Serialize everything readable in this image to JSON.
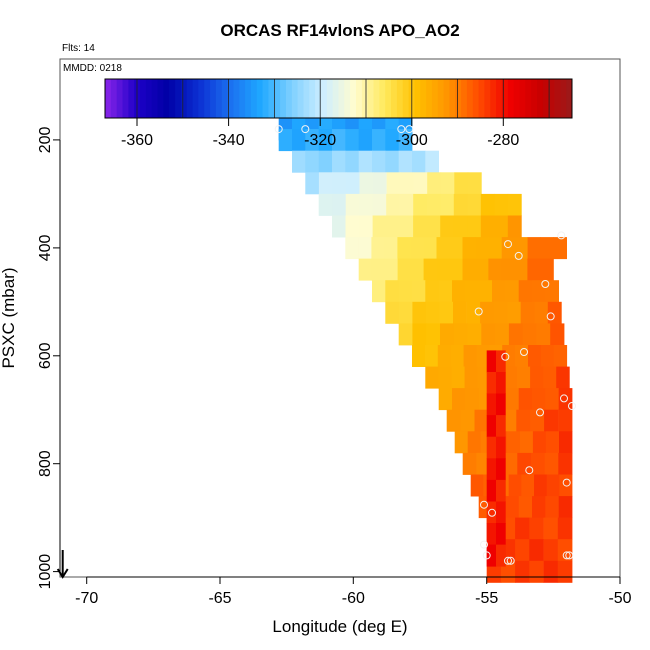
{
  "chart_data": {
    "type": "heatmap",
    "title": "ORCAS RF14vlonS APO_AO2",
    "flights_note": "Flts: 14",
    "date_note": "MMDD: 0218",
    "xlabel": "Longitude (deg E)",
    "ylabel": "PSXC (mbar)",
    "xlim": [
      -71,
      -50
    ],
    "ylim": [
      1010,
      50
    ],
    "x_ticks": [
      -70,
      -65,
      -60,
      -55,
      -50
    ],
    "x_tick_labels": [
      "-70",
      "-65",
      "-60",
      "-55",
      "-50"
    ],
    "y_ticks": [
      200,
      400,
      600,
      800,
      1000
    ],
    "y_tick_labels": [
      "200",
      "400",
      "600",
      "800",
      "1000"
    ],
    "colorbar": {
      "range": [
        -367,
        -265
      ],
      "ticks": [
        -360,
        -340,
        -320,
        -300,
        -280
      ],
      "tick_labels": [
        "-360",
        "-340",
        "-320",
        "-300",
        "-280"
      ],
      "colors": [
        "#8b25ea",
        "#1f00c8",
        "#0000a6",
        "#0b2ed1",
        "#1b6ff0",
        "#1fa8ff",
        "#7fd0ff",
        "#cdeeff",
        "#fffcd0",
        "#ffe95a",
        "#ffc000",
        "#ff9400",
        "#ff4c00",
        "#f00000",
        "#c80000",
        "#9a1a1a"
      ]
    },
    "grid": false,
    "layers": [
      {
        "p": 180,
        "lon_min": -62.8,
        "lon_max": -57.8,
        "v_left": -334,
        "v_right": -334
      },
      {
        "p": 200,
        "lon_min": -62.8,
        "lon_max": -57.8,
        "v_left": -332,
        "v_right": -332
      },
      {
        "p": 240,
        "lon_min": -62.3,
        "lon_max": -56.8,
        "v_left": -325,
        "v_right": -322
      },
      {
        "p": 280,
        "lon_min": -61.8,
        "lon_max": -55.2,
        "v_left": -322,
        "v_right": -304
      },
      {
        "p": 320,
        "lon_min": -61.3,
        "lon_max": -53.7,
        "v_left": -318,
        "v_right": -298
      },
      {
        "p": 360,
        "lon_min": -60.8,
        "lon_max": -53.7,
        "v_left": -315,
        "v_right": -294
      },
      {
        "p": 400,
        "lon_min": -60.3,
        "lon_max": -52.0,
        "v_left": -313,
        "v_right": -287
      },
      {
        "p": 440,
        "lon_min": -59.8,
        "lon_max": -52.5,
        "v_left": -310,
        "v_right": -287
      },
      {
        "p": 480,
        "lon_min": -59.3,
        "lon_max": -52.3,
        "v_left": -307,
        "v_right": -288
      },
      {
        "p": 520,
        "lon_min": -58.8,
        "lon_max": -52.2,
        "v_left": -304,
        "v_right": -288
      },
      {
        "p": 560,
        "lon_min": -58.3,
        "lon_max": -52.1,
        "v_left": -301,
        "v_right": -287
      },
      {
        "p": 600,
        "lon_min": -57.8,
        "lon_max": -52.0,
        "v_left": -299,
        "v_right": -286
      },
      {
        "p": 640,
        "lon_min": -57.3,
        "lon_max": -51.9,
        "v_left": -297,
        "v_right": -285
      },
      {
        "p": 680,
        "lon_min": -56.8,
        "lon_max": -51.8,
        "v_left": -295,
        "v_right": -284
      },
      {
        "p": 720,
        "lon_min": -56.5,
        "lon_max": -51.8,
        "v_left": -293,
        "v_right": -284
      },
      {
        "p": 760,
        "lon_min": -56.2,
        "lon_max": -51.8,
        "v_left": -291,
        "v_right": -284
      },
      {
        "p": 800,
        "lon_min": -55.9,
        "lon_max": -51.8,
        "v_left": -290,
        "v_right": -284
      },
      {
        "p": 840,
        "lon_min": -55.6,
        "lon_max": -51.8,
        "v_left": -288,
        "v_right": -284
      },
      {
        "p": 880,
        "lon_min": -55.3,
        "lon_max": -51.8,
        "v_left": -286,
        "v_right": -284
      },
      {
        "p": 920,
        "lon_min": -55.0,
        "lon_max": -51.8,
        "v_left": -285,
        "v_right": -284
      },
      {
        "p": 960,
        "lon_min": -55.0,
        "lon_max": -51.8,
        "v_left": -284,
        "v_right": -284
      },
      {
        "p": 1000,
        "lon_min": -55.0,
        "lon_max": -51.8,
        "v_left": -284,
        "v_right": -284
      }
    ],
    "red_core": {
      "lon_min": -55.0,
      "lon_max": -54.3,
      "p_min": 590,
      "p_max": 990,
      "value": -276
    },
    "observations": [
      {
        "lon": -62.8,
        "p": 180
      },
      {
        "lon": -61.8,
        "p": 180
      },
      {
        "lon": -58.2,
        "p": 180
      },
      {
        "lon": -57.9,
        "p": 180
      },
      {
        "lon": -54.2,
        "p": 393
      },
      {
        "lon": -53.8,
        "p": 415
      },
      {
        "lon": -52.2,
        "p": 377
      },
      {
        "lon": -52.8,
        "p": 467
      },
      {
        "lon": -55.3,
        "p": 518
      },
      {
        "lon": -52.6,
        "p": 527
      },
      {
        "lon": -53.6,
        "p": 593
      },
      {
        "lon": -54.3,
        "p": 602
      },
      {
        "lon": -52.1,
        "p": 679
      },
      {
        "lon": -51.8,
        "p": 693
      },
      {
        "lon": -53.0,
        "p": 705
      },
      {
        "lon": -53.4,
        "p": 812
      },
      {
        "lon": -52.0,
        "p": 835
      },
      {
        "lon": -55.1,
        "p": 876
      },
      {
        "lon": -54.8,
        "p": 891
      },
      {
        "lon": -55.1,
        "p": 950
      },
      {
        "lon": -55.0,
        "p": 970
      },
      {
        "lon": -52.0,
        "p": 970
      },
      {
        "lon": -51.9,
        "p": 970
      },
      {
        "lon": -54.2,
        "p": 980
      },
      {
        "lon": -54.1,
        "p": 980
      }
    ],
    "surface_arrow": {
      "lon": -70.9,
      "p_from": 960,
      "p_to": 1010
    }
  }
}
